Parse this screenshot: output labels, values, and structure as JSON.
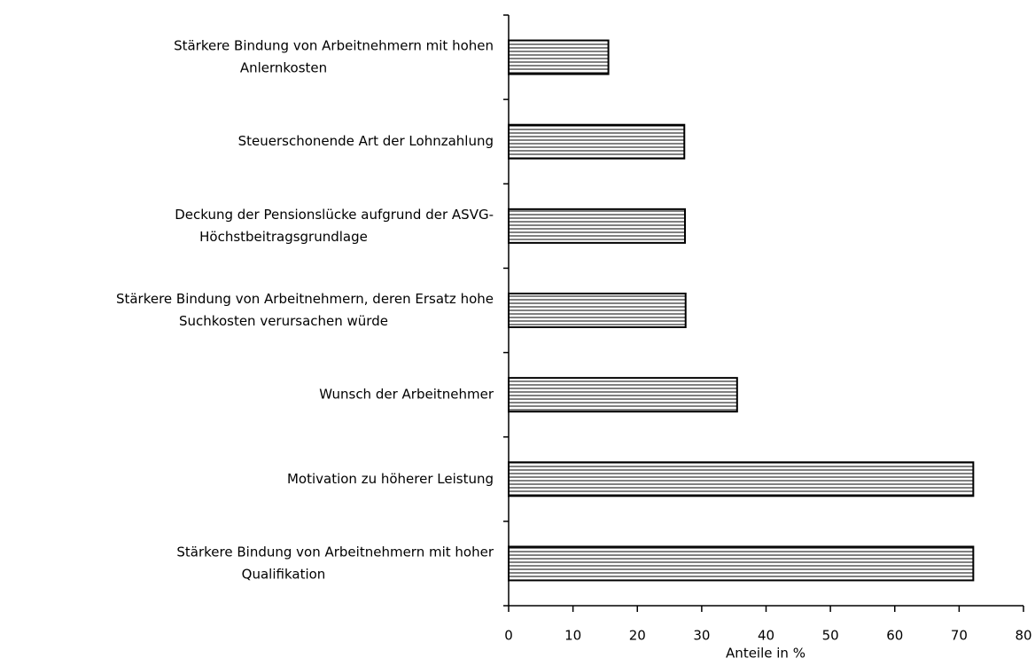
{
  "chart_data": {
    "type": "barh",
    "xlabel": "Anteile in %",
    "categories": [
      [
        "Stärkere Bindung von Arbeitnehmern mit hohen",
        "Anlernkosten"
      ],
      [
        "Steuerschonende Art der Lohnzahlung"
      ],
      [
        "Deckung der Pensionslücke aufgrund der ASVG-",
        "Höchstbeitragsgrundlage"
      ],
      [
        "Stärkere Bindung von Arbeitnehmern, deren Ersatz hohe",
        "Suchkosten verursachen würde"
      ],
      [
        "Wunsch der Arbeitnehmer"
      ],
      [
        "Motivation zu höherer Leistung"
      ],
      [
        "Stärkere Bindung von Arbeitnehmern mit hoher",
        "Qualifikation"
      ]
    ],
    "values": [
      15.5,
      27.3,
      27.4,
      27.5,
      35.5,
      72.2,
      72.2
    ],
    "color": "#000000",
    "xlim": [
      0,
      80
    ],
    "xticks": [
      0,
      10,
      20,
      30,
      40,
      50,
      60,
      70,
      80
    ]
  }
}
